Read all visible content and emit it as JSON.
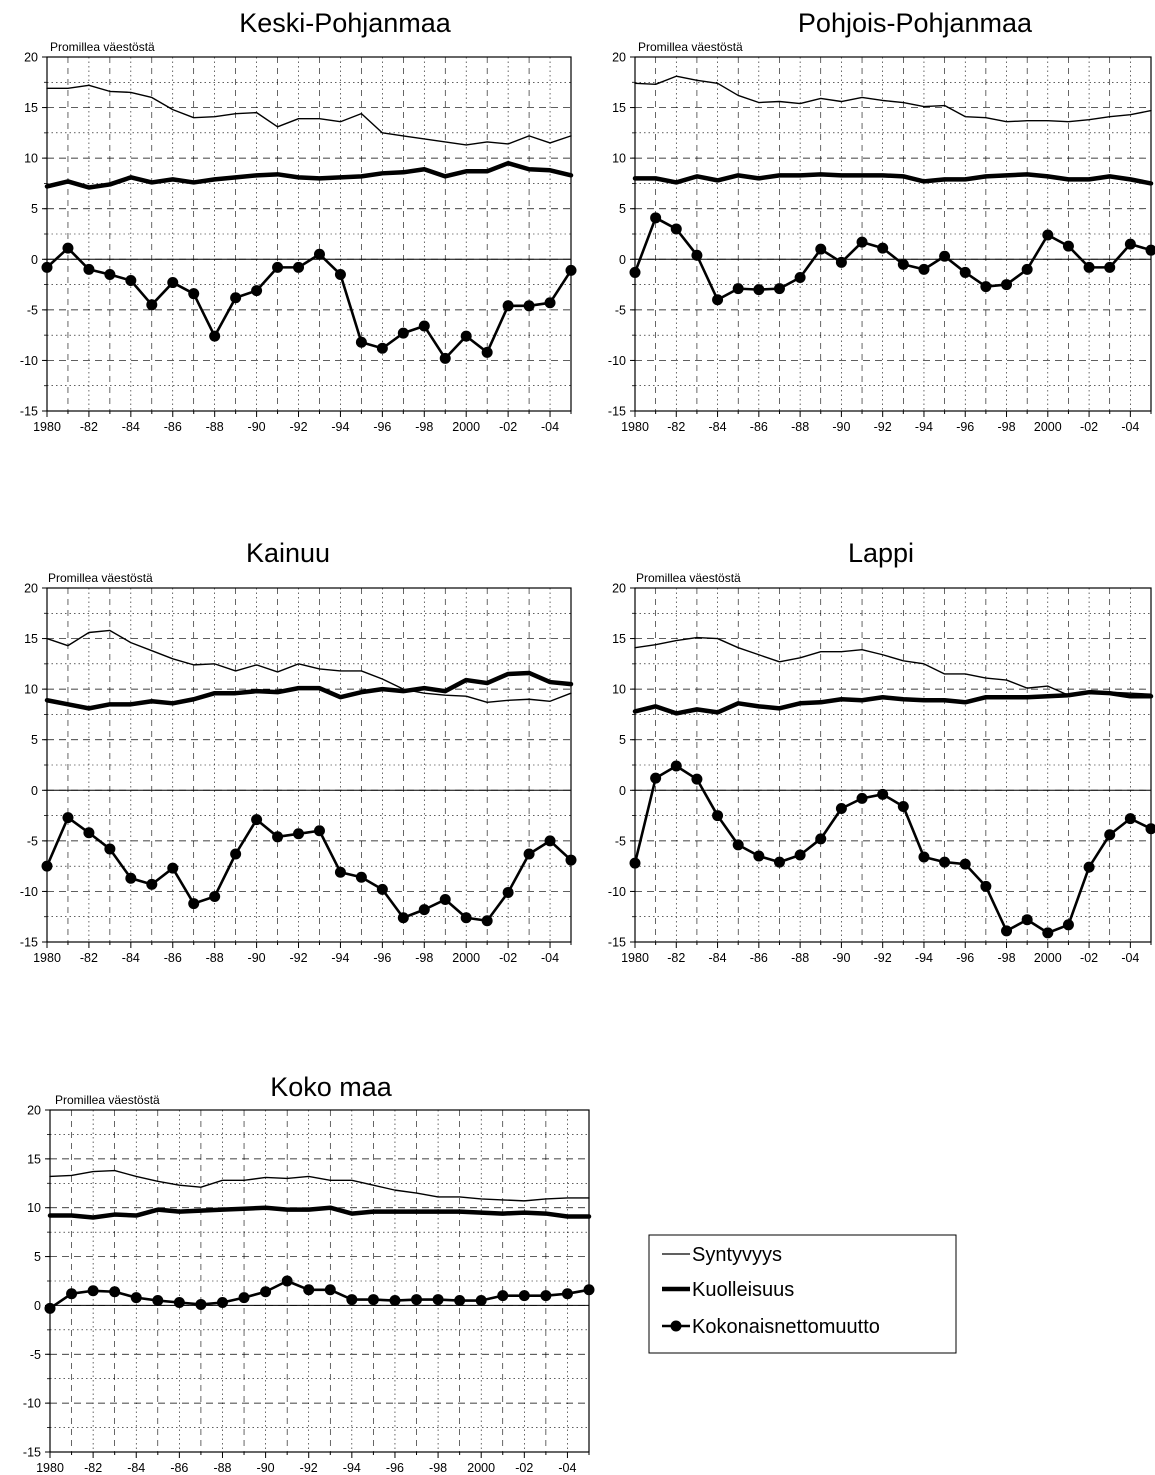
{
  "chart_data": [
    {
      "type": "line",
      "title": "Keski-Pohjanmaa",
      "ylabel": "Promillea väestöstä",
      "ylim": [
        -15,
        20
      ],
      "yticks": [
        "-15",
        "-10",
        "-5",
        "0",
        "5",
        "10",
        "15",
        "20"
      ],
      "xlim": [
        1980,
        2005
      ],
      "xtick_labels": [
        "1980",
        "-82",
        "-84",
        "-86",
        "-88",
        "-90",
        "-92",
        "-94",
        "-96",
        "-98",
        "2000",
        "-02",
        "-04"
      ],
      "x": [
        1980,
        1981,
        1982,
        1983,
        1984,
        1985,
        1986,
        1987,
        1988,
        1989,
        1990,
        1991,
        1992,
        1993,
        1994,
        1995,
        1996,
        1997,
        1998,
        1999,
        2000,
        2001,
        2002,
        2003,
        2004,
        2005
      ],
      "series": [
        {
          "name": "Syntyvyys",
          "values": [
            16.9,
            16.9,
            17.2,
            16.6,
            16.5,
            16.0,
            14.8,
            14.0,
            14.1,
            14.4,
            14.5,
            13.1,
            13.9,
            13.9,
            13.6,
            14.4,
            12.5,
            12.2,
            11.9,
            11.6,
            11.3,
            11.6,
            11.4,
            12.2,
            11.5,
            12.2
          ]
        },
        {
          "name": "Kuolleisuus",
          "values": [
            7.2,
            7.7,
            7.1,
            7.4,
            8.1,
            7.6,
            7.9,
            7.6,
            7.9,
            8.1,
            8.3,
            8.4,
            8.1,
            8.0,
            8.1,
            8.2,
            8.5,
            8.6,
            8.9,
            8.2,
            8.7,
            8.7,
            9.5,
            8.9,
            8.8,
            8.3
          ]
        },
        {
          "name": "Kokonaisnettomuutto",
          "values": [
            -0.8,
            1.1,
            -1.0,
            -1.5,
            -2.1,
            -4.5,
            -2.3,
            -3.4,
            -7.6,
            -3.8,
            -3.1,
            -0.8,
            -0.8,
            0.5,
            -1.5,
            -8.2,
            -8.8,
            -7.3,
            -6.6,
            -9.8,
            -7.6,
            -9.2,
            -4.6,
            -4.6,
            -4.3,
            -1.1
          ]
        }
      ]
    },
    {
      "type": "line",
      "title": "Pohjois-Pohjanmaa",
      "ylabel": "Promillea väestöstä",
      "ylim": [
        -15,
        20
      ],
      "yticks": [
        "-15",
        "-10",
        "-5",
        "0",
        "5",
        "10",
        "15",
        "20"
      ],
      "xlim": [
        1980,
        2005
      ],
      "xtick_labels": [
        "1980",
        "-82",
        "-84",
        "-86",
        "-88",
        "-90",
        "-92",
        "-94",
        "-96",
        "-98",
        "2000",
        "-02",
        "-04"
      ],
      "x": [
        1980,
        1981,
        1982,
        1983,
        1984,
        1985,
        1986,
        1987,
        1988,
        1989,
        1990,
        1991,
        1992,
        1993,
        1994,
        1995,
        1996,
        1997,
        1998,
        1999,
        2000,
        2001,
        2002,
        2003,
        2004,
        2005
      ],
      "series": [
        {
          "name": "Syntyvyys",
          "values": [
            17.4,
            17.3,
            18.1,
            17.7,
            17.4,
            16.2,
            15.5,
            15.6,
            15.4,
            15.9,
            15.6,
            16.0,
            15.7,
            15.5,
            15.1,
            15.2,
            14.1,
            14.0,
            13.6,
            13.7,
            13.7,
            13.6,
            13.8,
            14.1,
            14.3,
            14.7
          ]
        },
        {
          "name": "Kuolleisuus",
          "values": [
            8.0,
            8.0,
            7.6,
            8.2,
            7.8,
            8.3,
            8.0,
            8.3,
            8.3,
            8.4,
            8.3,
            8.3,
            8.3,
            8.2,
            7.7,
            7.9,
            7.9,
            8.2,
            8.3,
            8.4,
            8.2,
            7.9,
            7.9,
            8.2,
            7.9,
            7.5
          ]
        },
        {
          "name": "Kokonaisnettomuutto",
          "values": [
            -1.3,
            4.1,
            3.0,
            0.4,
            -4.0,
            -2.9,
            -3.0,
            -2.9,
            -1.8,
            1.0,
            -0.3,
            1.7,
            1.1,
            -0.5,
            -1.0,
            0.3,
            -1.3,
            -2.7,
            -2.5,
            -1.0,
            2.4,
            1.3,
            -0.8,
            -0.8,
            1.5,
            0.9
          ]
        }
      ]
    },
    {
      "type": "line",
      "title": "Kainuu",
      "ylabel": "Promillea väestöstä",
      "ylim": [
        -15,
        20
      ],
      "yticks": [
        "-15",
        "-10",
        "-5",
        "0",
        "5",
        "10",
        "15",
        "20"
      ],
      "xlim": [
        1980,
        2005
      ],
      "xtick_labels": [
        "1980",
        "-82",
        "-84",
        "-86",
        "-88",
        "-90",
        "-92",
        "-94",
        "-96",
        "-98",
        "2000",
        "-02",
        "-04"
      ],
      "x": [
        1980,
        1981,
        1982,
        1983,
        1984,
        1985,
        1986,
        1987,
        1988,
        1989,
        1990,
        1991,
        1992,
        1993,
        1994,
        1995,
        1996,
        1997,
        1998,
        1999,
        2000,
        2001,
        2002,
        2003,
        2004,
        2005
      ],
      "series": [
        {
          "name": "Syntyvyys",
          "values": [
            15.0,
            14.3,
            15.6,
            15.8,
            14.6,
            13.8,
            13.0,
            12.4,
            12.5,
            11.8,
            12.4,
            11.7,
            12.5,
            12.0,
            11.8,
            11.8,
            11.0,
            10.0,
            9.6,
            9.4,
            9.3,
            8.7,
            8.9,
            9.0,
            8.8,
            9.6
          ]
        },
        {
          "name": "Kuolleisuus",
          "values": [
            8.9,
            8.5,
            8.1,
            8.5,
            8.5,
            8.8,
            8.6,
            9.0,
            9.6,
            9.6,
            9.8,
            9.7,
            10.1,
            10.1,
            9.2,
            9.7,
            10.0,
            9.8,
            10.1,
            9.8,
            10.9,
            10.6,
            11.5,
            11.6,
            10.7,
            10.5
          ]
        },
        {
          "name": "Kokonaisnettomuutto",
          "values": [
            -7.5,
            -2.7,
            -4.2,
            -5.8,
            -8.7,
            -9.3,
            -7.7,
            -11.2,
            -10.5,
            -6.3,
            -2.9,
            -4.6,
            -4.3,
            -4.0,
            -8.1,
            -8.6,
            -9.8,
            -12.6,
            -11.8,
            -10.8,
            -12.6,
            -12.9,
            -10.1,
            -6.3,
            -5.0,
            -6.9
          ]
        }
      ]
    },
    {
      "type": "line",
      "title": "Lappi",
      "ylabel": "Promillea väestöstä",
      "ylim": [
        -15,
        20
      ],
      "yticks": [
        "-15",
        "-10",
        "-5",
        "0",
        "5",
        "10",
        "15",
        "20"
      ],
      "xlim": [
        1980,
        2005
      ],
      "xtick_labels": [
        "1980",
        "-82",
        "-84",
        "-86",
        "-88",
        "-90",
        "-92",
        "-94",
        "-96",
        "-98",
        "2000",
        "-02",
        "-04"
      ],
      "x": [
        1980,
        1981,
        1982,
        1983,
        1984,
        1985,
        1986,
        1987,
        1988,
        1989,
        1990,
        1991,
        1992,
        1993,
        1994,
        1995,
        1996,
        1997,
        1998,
        1999,
        2000,
        2001,
        2002,
        2003,
        2004,
        2005
      ],
      "series": [
        {
          "name": "Syntyvyys",
          "values": [
            14.1,
            14.4,
            14.8,
            15.1,
            15.0,
            14.1,
            13.4,
            12.7,
            13.1,
            13.7,
            13.7,
            13.9,
            13.4,
            12.8,
            12.5,
            11.5,
            11.5,
            11.1,
            10.9,
            10.1,
            10.3,
            9.4,
            9.6,
            9.7,
            9.6,
            9.5
          ]
        },
        {
          "name": "Kuolleisuus",
          "values": [
            7.8,
            8.3,
            7.6,
            8.0,
            7.7,
            8.6,
            8.3,
            8.1,
            8.6,
            8.7,
            9.0,
            8.9,
            9.2,
            9.0,
            8.9,
            8.9,
            8.7,
            9.2,
            9.2,
            9.2,
            9.3,
            9.4,
            9.7,
            9.6,
            9.3,
            9.3
          ]
        },
        {
          "name": "Kokonaisnettomuutto",
          "values": [
            -7.2,
            1.2,
            2.4,
            1.1,
            -2.5,
            -5.4,
            -6.5,
            -7.1,
            -6.4,
            -4.8,
            -1.8,
            -0.8,
            -0.4,
            -1.6,
            -6.6,
            -7.1,
            -7.3,
            -9.5,
            -13.9,
            -12.8,
            -14.1,
            -13.3,
            -7.6,
            -4.4,
            -2.8,
            -3.8
          ]
        }
      ]
    },
    {
      "type": "line",
      "title": "Koko maa",
      "ylabel": "Promillea väestöstä",
      "ylim": [
        -15,
        20
      ],
      "yticks": [
        "-15",
        "-10",
        "-5",
        "0",
        "5",
        "10",
        "15",
        "20"
      ],
      "xlim": [
        1980,
        2005
      ],
      "xtick_labels": [
        "1980",
        "-82",
        "-84",
        "-86",
        "-88",
        "-90",
        "-92",
        "-94",
        "-96",
        "-98",
        "2000",
        "-02",
        "-04"
      ],
      "x": [
        1980,
        1981,
        1982,
        1983,
        1984,
        1985,
        1986,
        1987,
        1988,
        1989,
        1990,
        1991,
        1992,
        1993,
        1994,
        1995,
        1996,
        1997,
        1998,
        1999,
        2000,
        2001,
        2002,
        2003,
        2004,
        2005
      ],
      "series": [
        {
          "name": "Syntyvyys",
          "values": [
            13.2,
            13.3,
            13.7,
            13.8,
            13.2,
            12.7,
            12.3,
            12.1,
            12.8,
            12.8,
            13.1,
            13.0,
            13.2,
            12.8,
            12.8,
            12.3,
            11.8,
            11.5,
            11.1,
            11.1,
            10.9,
            10.8,
            10.7,
            10.9,
            11.0,
            11.0
          ]
        },
        {
          "name": "Kuolleisuus",
          "values": [
            9.2,
            9.2,
            9.0,
            9.3,
            9.2,
            9.8,
            9.6,
            9.7,
            9.8,
            9.9,
            10.0,
            9.8,
            9.8,
            10.0,
            9.4,
            9.6,
            9.6,
            9.6,
            9.6,
            9.6,
            9.5,
            9.4,
            9.5,
            9.4,
            9.1,
            9.1
          ]
        },
        {
          "name": "Kokonaisnettomuutto",
          "values": [
            -0.3,
            1.2,
            1.5,
            1.4,
            0.8,
            0.5,
            0.3,
            0.1,
            0.3,
            0.8,
            1.4,
            2.5,
            1.6,
            1.6,
            0.6,
            0.6,
            0.5,
            0.6,
            0.6,
            0.5,
            0.5,
            1.0,
            1.0,
            1.0,
            1.2,
            1.6
          ]
        }
      ]
    }
  ],
  "legend": {
    "placement": "bottom-right",
    "items": [
      {
        "label": "Syntyvyys",
        "style": "thin-line"
      },
      {
        "label": "Kuolleisuus",
        "style": "thick-line"
      },
      {
        "label": "Kokonaisnettomuutto",
        "style": "line-with-markers"
      }
    ]
  },
  "colors": {
    "line": "#000000",
    "grid": "#000000",
    "background": "#ffffff"
  }
}
